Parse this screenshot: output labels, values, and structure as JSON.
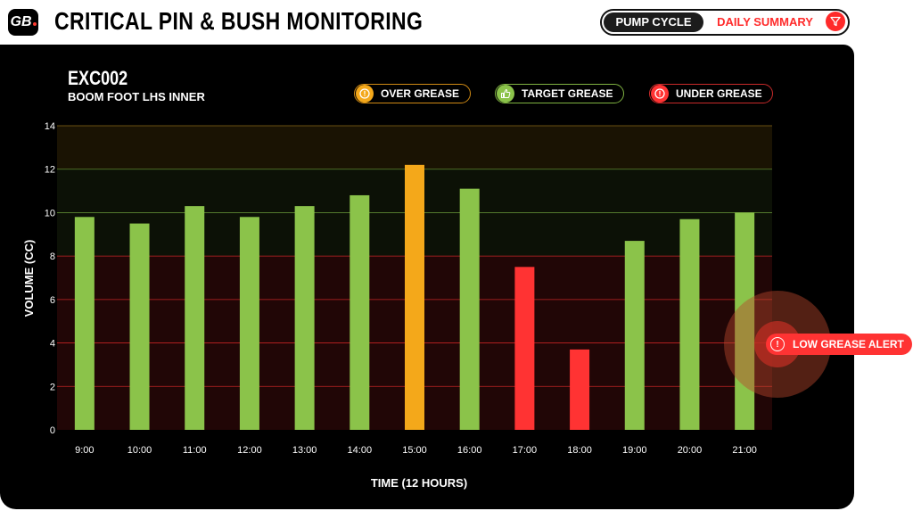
{
  "header": {
    "logo_text": "GB",
    "title": "CRITICAL PIN & BUSH MONITORING",
    "toggle": {
      "pump_cycle_label": "PUMP CYCLE",
      "daily_summary_label": "DAILY SUMMARY",
      "active": "PUMP CYCLE"
    }
  },
  "asset": {
    "id": "EXC002",
    "location": "BOOM FOOT LHS INNER"
  },
  "legend": {
    "over": {
      "label": "OVER GREASE",
      "color": "#f4a81a",
      "icon": "warning-icon"
    },
    "target": {
      "label": "TARGET GREASE",
      "color": "#8bc34a",
      "icon": "thumbs-up-icon"
    },
    "under": {
      "label": "UNDER GREASE",
      "color": "#ff3333",
      "icon": "warning-icon"
    }
  },
  "alert": {
    "label": "LOW GREASE ALERT",
    "icon": "warning-icon"
  },
  "chart_data": {
    "type": "bar",
    "xlabel": "TIME (12 HOURS)",
    "ylabel": "VOLUME (CC)",
    "ylim": [
      0,
      14
    ],
    "yticks": [
      0,
      2,
      4,
      6,
      8,
      10,
      12,
      14
    ],
    "grid": true,
    "categories": [
      "9:00",
      "10:00",
      "11:00",
      "12:00",
      "13:00",
      "14:00",
      "15:00",
      "16:00",
      "17:00",
      "18:00",
      "19:00",
      "20:00",
      "21:00"
    ],
    "values": [
      9.8,
      9.5,
      10.3,
      9.8,
      10.3,
      10.8,
      12.2,
      11.1,
      7.5,
      3.7,
      8.7,
      9.7,
      10.0
    ],
    "status": [
      "target",
      "target",
      "target",
      "target",
      "target",
      "target",
      "over",
      "target",
      "under",
      "under",
      "target",
      "target",
      "target"
    ],
    "bands": [
      {
        "zone": "under",
        "from": 0,
        "to": 8
      },
      {
        "zone": "target",
        "from": 8,
        "to": 12
      },
      {
        "zone": "over",
        "from": 12,
        "to": 14
      }
    ],
    "colors": {
      "over": "#f4a81a",
      "target": "#8bc34a",
      "under": "#ff3333"
    }
  }
}
